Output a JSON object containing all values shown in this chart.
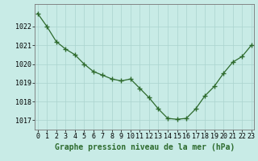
{
  "x": [
    0,
    1,
    2,
    3,
    4,
    5,
    6,
    7,
    8,
    9,
    10,
    11,
    12,
    13,
    14,
    15,
    16,
    17,
    18,
    19,
    20,
    21,
    22,
    23
  ],
  "y": [
    1022.7,
    1022.0,
    1021.2,
    1020.8,
    1020.5,
    1020.0,
    1019.6,
    1019.4,
    1019.2,
    1019.1,
    1019.2,
    1018.7,
    1018.2,
    1017.6,
    1017.1,
    1017.05,
    1017.1,
    1017.6,
    1018.3,
    1018.8,
    1019.5,
    1020.1,
    1020.4,
    1021.0
  ],
  "ylim": [
    1016.5,
    1023.2
  ],
  "yticks": [
    1017,
    1018,
    1019,
    1020,
    1021,
    1022
  ],
  "xticks": [
    0,
    1,
    2,
    3,
    4,
    5,
    6,
    7,
    8,
    9,
    10,
    11,
    12,
    13,
    14,
    15,
    16,
    17,
    18,
    19,
    20,
    21,
    22,
    23
  ],
  "line_color": "#2d6a2d",
  "marker": "+",
  "marker_size": 4,
  "marker_color": "#2d6a2d",
  "bg_color": "#c8ebe6",
  "grid_color": "#aad4ce",
  "axis_color": "#555555",
  "xlabel": "Graphe pression niveau de la mer (hPa)",
  "xlabel_color": "#2d6a2d",
  "xlabel_fontsize": 7.0,
  "tick_fontsize": 6.0,
  "figsize": [
    3.2,
    2.0
  ],
  "dpi": 100
}
